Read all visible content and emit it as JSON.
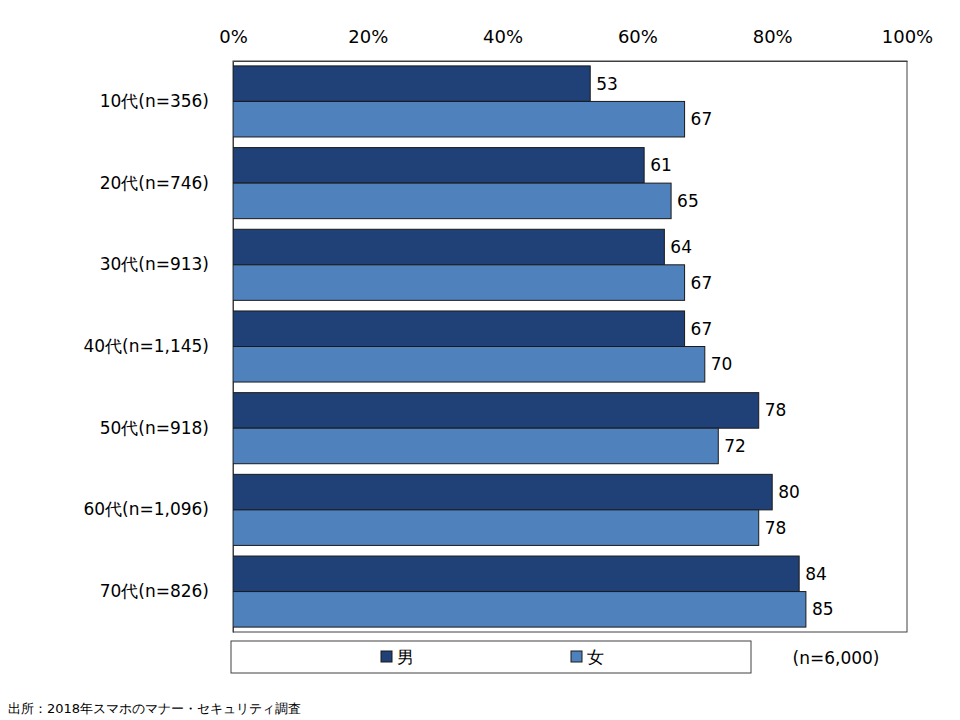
{
  "chart_data": {
    "type": "bar",
    "orientation": "horizontal",
    "categories": [
      "10代(n=356)",
      "20代(n=746)",
      "30代(n=913)",
      "40代(n=1,145)",
      "50代(n=918)",
      "60代(n=1,096)",
      "70代(n=826)"
    ],
    "series": [
      {
        "name": "男",
        "color": "#1f4177",
        "values": [
          53,
          61,
          64,
          67,
          78,
          80,
          84
        ]
      },
      {
        "name": "女",
        "color": "#4f81bd",
        "values": [
          67,
          65,
          67,
          70,
          72,
          78,
          85
        ]
      }
    ],
    "xlim": [
      0,
      100
    ],
    "xticks": [
      {
        "value": 0,
        "label": "0%"
      },
      {
        "value": 20,
        "label": "20%"
      },
      {
        "value": 40,
        "label": "40%"
      },
      {
        "value": 60,
        "label": "60%"
      },
      {
        "value": 80,
        "label": "80%"
      },
      {
        "value": 100,
        "label": "100%"
      }
    ],
    "data_labels": true,
    "grid": false,
    "legend": "bottom",
    "annotations": [
      "(n=6,000)",
      "出所：2018年スマホのマナー・セキュリティ調査"
    ]
  }
}
